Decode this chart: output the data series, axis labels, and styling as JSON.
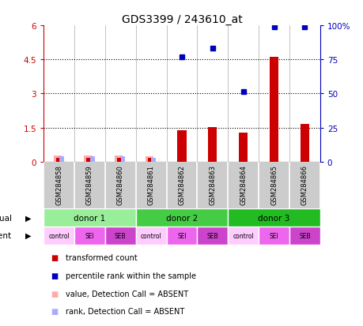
{
  "title": "GDS3399 / 243610_at",
  "samples": [
    "GSM284858",
    "GSM284859",
    "GSM284860",
    "GSM284861",
    "GSM284862",
    "GSM284863",
    "GSM284864",
    "GSM284865",
    "GSM284866"
  ],
  "red_bars": [
    0.18,
    0.18,
    0.18,
    0.18,
    1.38,
    1.52,
    1.28,
    4.6,
    1.65
  ],
  "red_absent": [
    true,
    true,
    true,
    true,
    false,
    false,
    false,
    false,
    false
  ],
  "pink_value_bars": [
    0.28,
    0.28,
    0.28,
    0.24,
    0.0,
    0.0,
    0.0,
    0.0,
    0.0
  ],
  "light_blue_rank_bars": [
    0.22,
    0.22,
    0.22,
    0.18,
    0.0,
    0.0,
    0.0,
    0.0,
    0.0
  ],
  "blue_dots": [
    null,
    null,
    null,
    null,
    4.62,
    5.0,
    3.1,
    5.95,
    5.95
  ],
  "ylim_left": [
    0,
    6
  ],
  "ylim_right": [
    0,
    100
  ],
  "yticks_left": [
    0,
    1.5,
    3.0,
    4.5,
    6.0
  ],
  "ytick_labels_left": [
    "0",
    "1.5",
    "3",
    "4.5",
    "6"
  ],
  "yticks_right": [
    0,
    25,
    50,
    75,
    100
  ],
  "ytick_labels_right": [
    "0",
    "25",
    "50",
    "75",
    "100%"
  ],
  "hlines": [
    1.5,
    3.0,
    4.5
  ],
  "donors": [
    {
      "label": "donor 1",
      "start": 0,
      "end": 3,
      "color": "#99ee99"
    },
    {
      "label": "donor 2",
      "start": 3,
      "end": 6,
      "color": "#44cc44"
    },
    {
      "label": "donor 3",
      "start": 6,
      "end": 9,
      "color": "#22bb22"
    }
  ],
  "agents": [
    "control",
    "SEI",
    "SEB",
    "control",
    "SEI",
    "SEB",
    "control",
    "SEI",
    "SEB"
  ],
  "agent_colors": [
    "#ffccff",
    "#ee66ee",
    "#cc44cc",
    "#ffccff",
    "#ee66ee",
    "#cc44cc",
    "#ffccff",
    "#ee66ee",
    "#cc44cc"
  ],
  "background_color": "#ffffff",
  "sample_box_color": "#cccccc",
  "red_color": "#cc0000",
  "blue_color": "#0000bb",
  "pink_color": "#ffaaaa",
  "light_blue_color": "#aaaaff",
  "legend_items": [
    {
      "color": "#cc0000",
      "label": "transformed count"
    },
    {
      "color": "#0000bb",
      "label": "percentile rank within the sample"
    },
    {
      "color": "#ffaaaa",
      "label": "value, Detection Call = ABSENT"
    },
    {
      "color": "#aaaaff",
      "label": "rank, Detection Call = ABSENT"
    }
  ]
}
